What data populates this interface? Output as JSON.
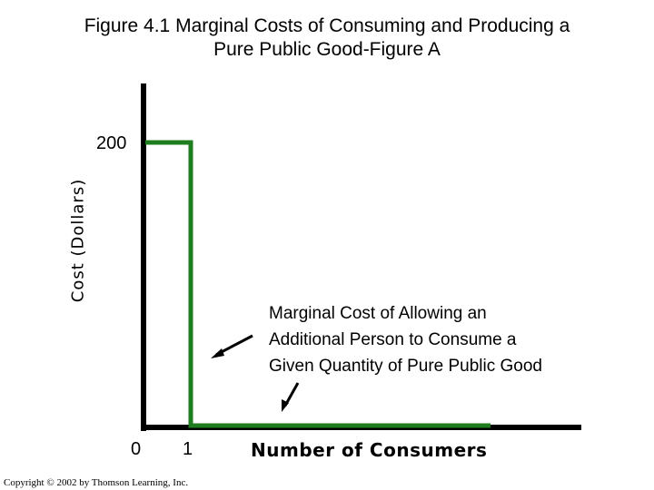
{
  "colors": {
    "axis": "#000000",
    "series": "#1e7d1e",
    "background": "#ffffff"
  },
  "chart_data": {
    "type": "line",
    "title_lines": [
      "Figure 4.1 Marginal Costs of Consuming and Producing a",
      "Pure Public Good-Figure A"
    ],
    "ylabel": "Cost (Dollars)",
    "xlabel": "Number of Consumers",
    "y_ticks": [
      "200"
    ],
    "x_ticks": [
      "0",
      "1"
    ],
    "series": [
      {
        "x": [
          0,
          0,
          1,
          1,
          7.6
        ],
        "y": [
          200,
          200,
          200,
          0,
          0
        ]
      }
    ],
    "annotation_lines": [
      "Marginal Cost of Allowing an",
      "Additional Person to Consume a",
      "Given Quantity of Pure Public Good"
    ],
    "grid": false
  },
  "footer": {
    "copyright": "Copyright © 2002 by Thomson Learning, Inc."
  }
}
